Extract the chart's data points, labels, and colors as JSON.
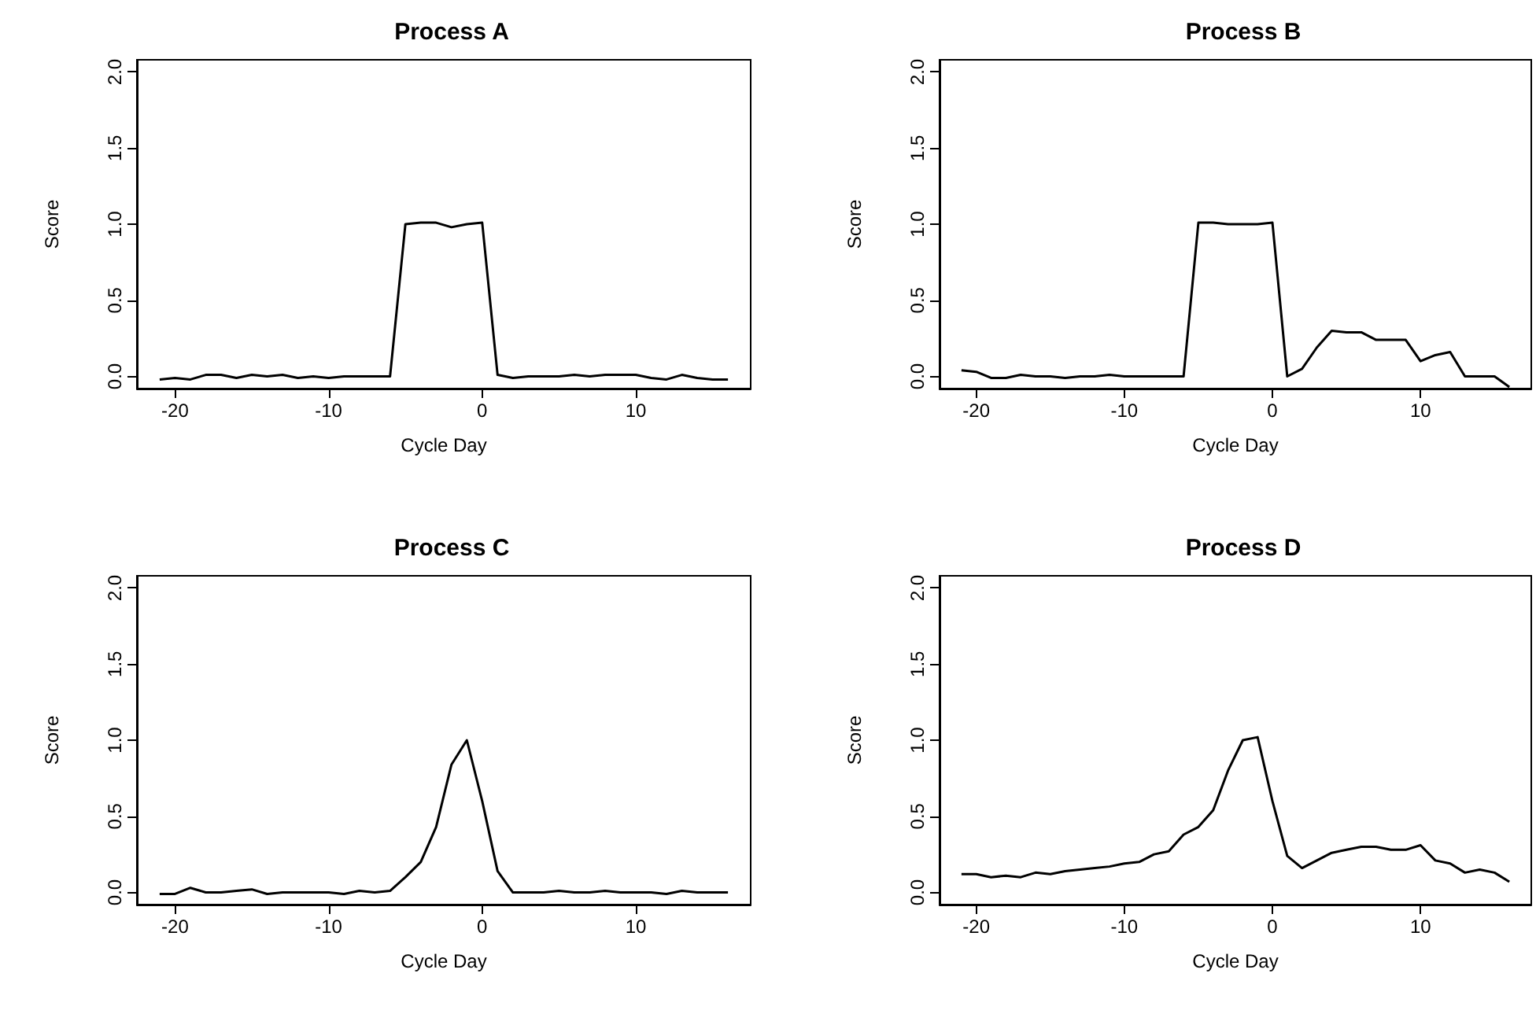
{
  "chart_data": [
    {
      "type": "line",
      "title": "Process A",
      "xlabel": "Cycle Day",
      "ylabel": "Score",
      "color": "#000000",
      "grid": false,
      "xlim": [
        -22.48,
        17.48
      ],
      "xticks": [
        -20,
        -10,
        0,
        10
      ],
      "ylim": [
        -0.08,
        2.08
      ],
      "yticks": [
        {
          "value": 0,
          "label": "0.0"
        },
        {
          "value": 0.5,
          "label": "0.5"
        },
        {
          "value": 1,
          "label": "1.0"
        },
        {
          "value": 1.5,
          "label": "1.5"
        },
        {
          "value": 2,
          "label": "2.0"
        }
      ],
      "x": [
        -21,
        -20,
        -19,
        -18,
        -17,
        -16,
        -15,
        -14,
        -13,
        -12,
        -11,
        -10,
        -9,
        -8,
        -7,
        -6,
        -5,
        -4,
        -3,
        -2,
        -1,
        0,
        1,
        2,
        3,
        4,
        5,
        6,
        7,
        8,
        9,
        10,
        11,
        12,
        13,
        14,
        15,
        16
      ],
      "values": [
        -0.02,
        -0.01,
        -0.02,
        0.01,
        0.01,
        -0.01,
        0.01,
        0.0,
        0.01,
        -0.01,
        0.0,
        -0.01,
        0,
        0,
        0,
        0,
        1.0,
        1.01,
        1.01,
        0.98,
        1.0,
        1.01,
        0.01,
        -0.01,
        0,
        0,
        0,
        0.01,
        0,
        0.01,
        0.01,
        0.01,
        -0.01,
        -0.02,
        0.01,
        -0.01,
        -0.02,
        -0.02
      ]
    },
    {
      "type": "line",
      "title": "Process B",
      "xlabel": "Cycle Day",
      "ylabel": "Score",
      "color": "#000000",
      "grid": false,
      "xlim": [
        -22.48,
        17.48
      ],
      "xticks": [
        -20,
        -10,
        0,
        10
      ],
      "ylim": [
        -0.08,
        2.08
      ],
      "yticks": [
        {
          "value": 0,
          "label": "0.0"
        },
        {
          "value": 0.5,
          "label": "0.5"
        },
        {
          "value": 1,
          "label": "1.0"
        },
        {
          "value": 1.5,
          "label": "1.5"
        },
        {
          "value": 2,
          "label": "2.0"
        }
      ],
      "x": [
        -21,
        -20,
        -19,
        -18,
        -17,
        -16,
        -15,
        -14,
        -13,
        -12,
        -11,
        -10,
        -9,
        -8,
        -7,
        -6,
        -5,
        -4,
        -3,
        -2,
        -1,
        0,
        1,
        2,
        3,
        4,
        5,
        6,
        7,
        8,
        9,
        10,
        11,
        12,
        13,
        14,
        15,
        16
      ],
      "values": [
        0.04,
        0.03,
        -0.01,
        -0.01,
        0.01,
        0,
        0,
        -0.01,
        0,
        0,
        0.01,
        0,
        0,
        0,
        0,
        0,
        1.01,
        1.01,
        1.0,
        1.0,
        1.0,
        1.01,
        0.0,
        0.05,
        0.19,
        0.3,
        0.29,
        0.29,
        0.24,
        0.24,
        0.24,
        0.1,
        0.14,
        0.16,
        0.0,
        0,
        0,
        -0.07
      ]
    },
    {
      "type": "line",
      "title": "Process C",
      "xlabel": "Cycle Day",
      "ylabel": "Score",
      "color": "#000000",
      "grid": false,
      "xlim": [
        -22.48,
        17.48
      ],
      "xticks": [
        -20,
        -10,
        0,
        10
      ],
      "ylim": [
        -0.08,
        2.08
      ],
      "yticks": [
        {
          "value": 0,
          "label": "0.0"
        },
        {
          "value": 0.5,
          "label": "0.5"
        },
        {
          "value": 1,
          "label": "1.0"
        },
        {
          "value": 1.5,
          "label": "1.5"
        },
        {
          "value": 2,
          "label": "2.0"
        }
      ],
      "x": [
        -21,
        -20,
        -19,
        -18,
        -17,
        -16,
        -15,
        -14,
        -13,
        -12,
        -11,
        -10,
        -9,
        -8,
        -7,
        -6,
        -5,
        -4,
        -3,
        -2,
        -1,
        0,
        1,
        2,
        3,
        4,
        5,
        6,
        7,
        8,
        9,
        10,
        11,
        12,
        13,
        14,
        15,
        16
      ],
      "values": [
        -0.01,
        -0.01,
        0.03,
        0,
        0,
        0.01,
        0.02,
        -0.01,
        0,
        0,
        0,
        0,
        -0.01,
        0.01,
        0,
        0.01,
        0.1,
        0.2,
        0.43,
        0.84,
        1.0,
        0.6,
        0.14,
        0,
        0,
        0,
        0.01,
        0,
        0,
        0.01,
        0,
        0,
        0,
        -0.01,
        0.01,
        0,
        0,
        0
      ]
    },
    {
      "type": "line",
      "title": "Process D",
      "xlabel": "Cycle Day",
      "ylabel": "Score",
      "color": "#000000",
      "grid": false,
      "xlim": [
        -22.48,
        17.48
      ],
      "xticks": [
        -20,
        -10,
        0,
        10
      ],
      "ylim": [
        -0.08,
        2.08
      ],
      "yticks": [
        {
          "value": 0,
          "label": "0.0"
        },
        {
          "value": 0.5,
          "label": "0.5"
        },
        {
          "value": 1,
          "label": "1.0"
        },
        {
          "value": 1.5,
          "label": "1.5"
        },
        {
          "value": 2,
          "label": "2.0"
        }
      ],
      "x": [
        -21,
        -20,
        -19,
        -18,
        -17,
        -16,
        -15,
        -14,
        -13,
        -12,
        -11,
        -10,
        -9,
        -8,
        -7,
        -6,
        -5,
        -4,
        -3,
        -2,
        -1,
        0,
        1,
        2,
        3,
        4,
        5,
        6,
        7,
        8,
        9,
        10,
        11,
        12,
        13,
        14,
        15,
        16
      ],
      "values": [
        0.12,
        0.12,
        0.1,
        0.11,
        0.1,
        0.13,
        0.12,
        0.14,
        0.15,
        0.16,
        0.17,
        0.19,
        0.2,
        0.25,
        0.27,
        0.38,
        0.43,
        0.54,
        0.8,
        1.0,
        1.02,
        0.6,
        0.24,
        0.16,
        0.21,
        0.26,
        0.28,
        0.3,
        0.3,
        0.28,
        0.28,
        0.31,
        0.21,
        0.19,
        0.13,
        0.15,
        0.13,
        0.07
      ]
    }
  ]
}
